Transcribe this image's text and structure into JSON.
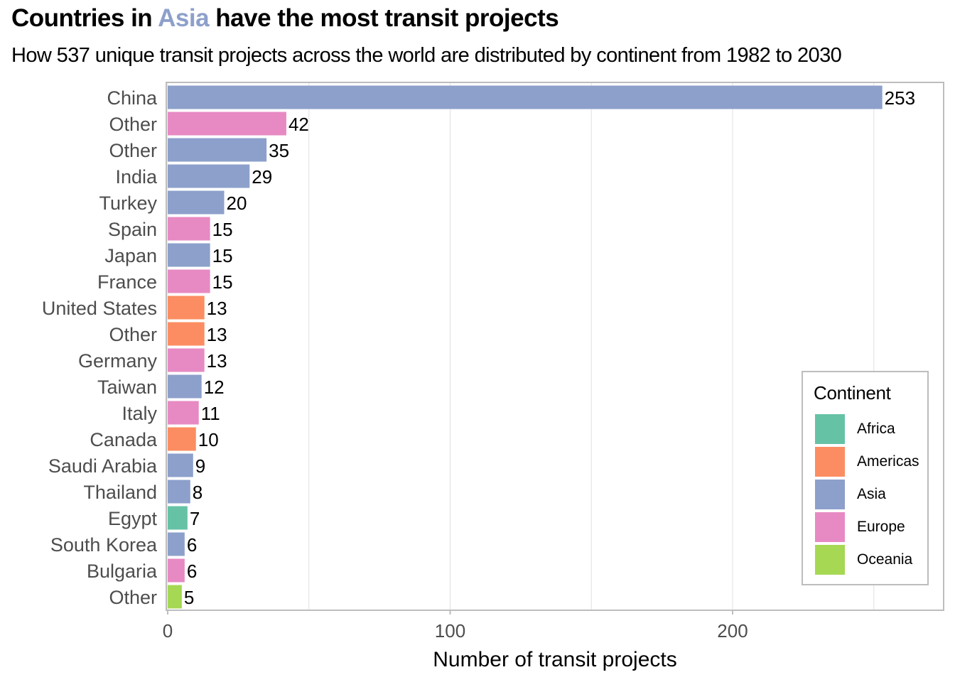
{
  "title": {
    "prefix": "Countries in ",
    "highlight": "Asia",
    "suffix": " have the most transit projects"
  },
  "subtitle": "How 537 unique transit projects across the world are distributed by continent from 1982 to 2030",
  "colors": {
    "Africa": "#66c2a5",
    "Americas": "#fc8d62",
    "Asia": "#8da0cb",
    "Europe": "#e78ac3",
    "Oceania": "#a6d854",
    "grid": "#e0e0e0",
    "border": "#bdbdbd"
  },
  "legend": {
    "title": "Continent",
    "items": [
      "Africa",
      "Americas",
      "Asia",
      "Europe",
      "Oceania"
    ]
  },
  "chart_data": {
    "type": "bar",
    "orientation": "horizontal",
    "title": "Countries in Asia have the most transit projects",
    "subtitle": "How 537 unique transit projects across the world are distributed by continent from 1982 to 2030",
    "xlabel": "Number of transit projects",
    "ylabel": "",
    "xlim": [
      0,
      275
    ],
    "xticks": [
      0,
      100,
      200
    ],
    "grid": true,
    "legend_position": "bottom-right",
    "categories": [
      "China",
      "Other",
      "Other",
      "India",
      "Turkey",
      "Spain",
      "Japan",
      "France",
      "United States",
      "Other",
      "Germany",
      "Taiwan",
      "Italy",
      "Canada",
      "Saudi Arabia",
      "Thailand",
      "Egypt",
      "South Korea",
      "Bulgaria",
      "Other"
    ],
    "values": [
      253,
      42,
      35,
      29,
      20,
      15,
      15,
      15,
      13,
      13,
      13,
      12,
      11,
      10,
      9,
      8,
      7,
      6,
      6,
      5
    ],
    "continent": [
      "Asia",
      "Europe",
      "Asia",
      "Asia",
      "Asia",
      "Europe",
      "Asia",
      "Europe",
      "Americas",
      "Americas",
      "Europe",
      "Asia",
      "Europe",
      "Americas",
      "Asia",
      "Asia",
      "Africa",
      "Asia",
      "Europe",
      "Oceania"
    ]
  }
}
